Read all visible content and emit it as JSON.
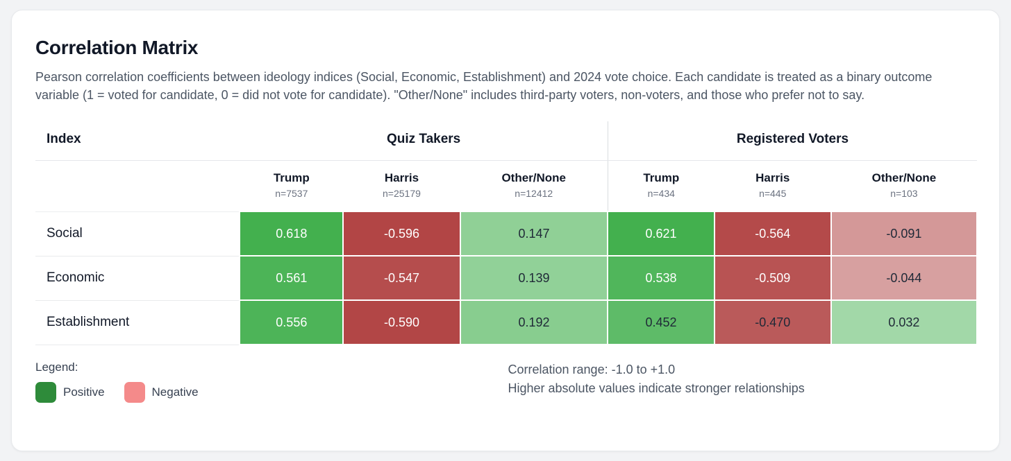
{
  "card": {
    "title": "Correlation Matrix",
    "description": "Pearson correlation coefficients between ideology indices (Social, Economic, Establishment) and 2024 vote choice. Each candidate is treated as a binary outcome variable (1 = voted for candidate, 0 = did not vote for candidate). \"Other/None\" includes third-party voters, non-voters, and those who prefer not to say."
  },
  "chart_data": {
    "type": "heatmap",
    "title": "Correlation Matrix",
    "row_header_label": "Index",
    "groups": [
      {
        "label": "Quiz Takers",
        "columns": [
          {
            "label": "Trump",
            "n": "n=7537"
          },
          {
            "label": "Harris",
            "n": "n=25179"
          },
          {
            "label": "Other/None",
            "n": "n=12412"
          }
        ]
      },
      {
        "label": "Registered Voters",
        "columns": [
          {
            "label": "Trump",
            "n": "n=434"
          },
          {
            "label": "Harris",
            "n": "n=445"
          },
          {
            "label": "Other/None",
            "n": "n=103"
          }
        ]
      }
    ],
    "rows": [
      {
        "label": "Social",
        "values": [
          0.618,
          -0.596,
          0.147,
          0.621,
          -0.564,
          -0.091
        ]
      },
      {
        "label": "Economic",
        "values": [
          0.561,
          -0.547,
          0.139,
          0.538,
          -0.509,
          -0.044
        ]
      },
      {
        "label": "Establishment",
        "values": [
          0.556,
          -0.59,
          0.192,
          0.452,
          -0.47,
          0.032
        ]
      }
    ],
    "value_range": [
      -1.0,
      1.0
    ],
    "colors": {
      "positive_base": "#059614",
      "negative_base": "#960303",
      "strong_text": "#ffffff",
      "weak_text": "#1f2937"
    }
  },
  "legend": {
    "label": "Legend:",
    "items": [
      {
        "label": "Positive",
        "color": "#2e8b3a"
      },
      {
        "label": "Negative",
        "color": "#f48a8a"
      }
    ]
  },
  "notes": {
    "line1": "Correlation range: -1.0 to +1.0",
    "line2": "Higher absolute values indicate stronger relationships"
  }
}
